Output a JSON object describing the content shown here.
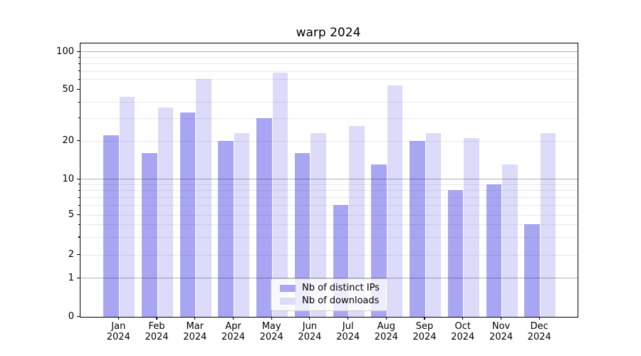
{
  "title": "warp 2024",
  "chart_data": {
    "type": "bar",
    "title": "warp 2024",
    "categories": [
      "Jan 2024",
      "Feb 2024",
      "Mar 2024",
      "Apr 2024",
      "May 2024",
      "Jun 2024",
      "Jul 2024",
      "Aug 2024",
      "Sep 2024",
      "Oct 2024",
      "Nov 2024",
      "Dec 2024"
    ],
    "series": [
      {
        "name": "Nb of distinct IPs",
        "color": "#a8a6f3",
        "values": [
          22,
          16,
          33,
          20,
          30,
          16,
          6,
          13,
          20,
          8,
          9,
          4
        ]
      },
      {
        "name": "Nb of downloads",
        "color": "#dcdbfa",
        "values": [
          44,
          36,
          60,
          23,
          68,
          23,
          26,
          54,
          23,
          21,
          13,
          23
        ]
      }
    ],
    "yscale": "log-like (symlog, 0 shown at baseline)",
    "ylim": [
      0,
      115
    ],
    "y_ticks": [
      0,
      1,
      2,
      5,
      10,
      20,
      50,
      100
    ],
    "y_major_gridlines": [
      1,
      10,
      100
    ],
    "y_minor_gridlines": [
      2,
      3,
      4,
      5,
      6,
      7,
      8,
      9,
      20,
      30,
      40,
      60,
      70,
      80,
      90
    ],
    "grid": true,
    "legend_position": "lower center",
    "xlabel": "",
    "ylabel": ""
  }
}
